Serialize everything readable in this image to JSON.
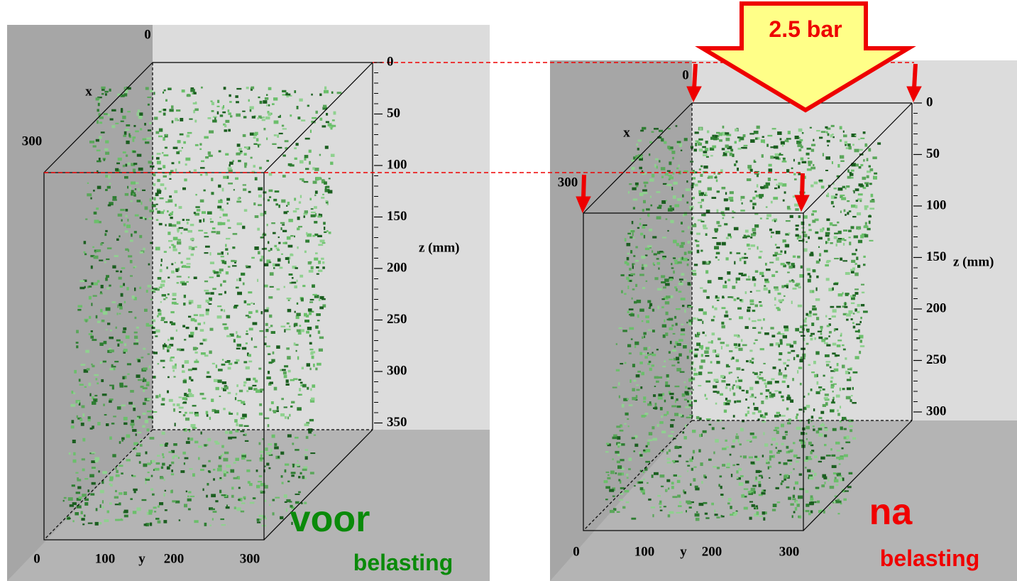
{
  "panels": [
    {
      "x_axis": {
        "label": "x",
        "ticks": [
          "0",
          "300"
        ]
      },
      "y_axis": {
        "label": "y",
        "ticks": [
          "0",
          "100",
          "200",
          "300"
        ]
      },
      "z_axis": {
        "label": "z (mm)",
        "ticks": [
          "0",
          "50",
          "100",
          "150",
          "200",
          "250",
          "300",
          "350"
        ]
      },
      "caption": {
        "main": "voor",
        "sub": "belasting"
      }
    },
    {
      "load_label": "2.5 bar",
      "x_axis": {
        "label": "x",
        "ticks": [
          "0",
          "300"
        ]
      },
      "y_axis": {
        "label": "y",
        "ticks": [
          "0",
          "100",
          "200",
          "300"
        ]
      },
      "z_axis": {
        "label": "z (mm)",
        "ticks": [
          "0",
          "50",
          "100",
          "150",
          "200",
          "250",
          "300"
        ]
      },
      "caption": {
        "main": "na",
        "sub": "belasting"
      }
    }
  ]
}
